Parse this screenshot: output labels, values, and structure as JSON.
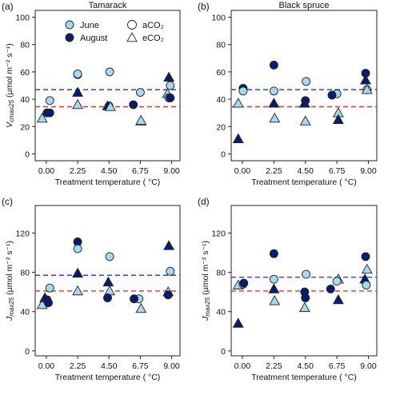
{
  "colors": {
    "june": "#a8d8ec",
    "august": "#0a1c6e",
    "outline": "#222222",
    "ambient_line": "#3b3bd6",
    "elevated_line": "#e0312b"
  },
  "legend": {
    "june": "June",
    "august": "August",
    "aco2": "aCO₂",
    "eco2": "eCO₂"
  },
  "chart_data": [
    {
      "type": "scatter",
      "panel": "(a)",
      "title": "Tamarack",
      "ylabel_main": "V",
      "ylabel_sub": "cmax25",
      "ylabel_units": " (µmol m⁻² s⁻¹)",
      "xlabel": "Treatment temperature ( °C)",
      "xlim": [
        -0.8,
        9.6
      ],
      "ylim": [
        -5,
        105
      ],
      "xticks": [
        "0.00",
        "2.25",
        "4.50",
        "6.75",
        "9.00"
      ],
      "yticks": [
        0,
        20,
        40,
        60,
        80,
        100
      ],
      "legend_position": "top-left",
      "hlines": {
        "aCO2": 47,
        "eCO2": 34.5
      },
      "points": [
        {
          "month": "June",
          "co2": "aCO2",
          "x": 0.25,
          "y": 39
        },
        {
          "month": "June",
          "co2": "eCO2",
          "x": -0.3,
          "y": 26
        },
        {
          "month": "August",
          "co2": "aCO2",
          "x": 0.05,
          "y": 30
        },
        {
          "month": "August",
          "co2": "aCO2",
          "x": 0.25,
          "y": 30
        },
        {
          "month": "June",
          "co2": "aCO2",
          "x": 2.25,
          "y": 58
        },
        {
          "month": "June",
          "co2": "aCO2",
          "x": 2.25,
          "y": 58.5
        },
        {
          "month": "August",
          "co2": "eCO2",
          "x": 2.25,
          "y": 45
        },
        {
          "month": "June",
          "co2": "eCO2",
          "x": 2.25,
          "y": 36
        },
        {
          "month": "June",
          "co2": "aCO2",
          "x": 4.55,
          "y": 60
        },
        {
          "month": "August",
          "co2": "aCO2",
          "x": 4.5,
          "y": 35
        },
        {
          "month": "August",
          "co2": "eCO2",
          "x": 4.4,
          "y": 35
        },
        {
          "month": "June",
          "co2": "eCO2",
          "x": 4.6,
          "y": 34.5
        },
        {
          "month": "June",
          "co2": "aCO2",
          "x": 6.75,
          "y": 45
        },
        {
          "month": "August",
          "co2": "aCO2",
          "x": 6.25,
          "y": 36
        },
        {
          "month": "June",
          "co2": "eCO2",
          "x": 6.8,
          "y": 24
        },
        {
          "month": "June",
          "co2": "eCO2",
          "x": 6.8,
          "y": 24.5
        },
        {
          "month": "August",
          "co2": "eCO2",
          "x": 8.8,
          "y": 56
        },
        {
          "month": "June",
          "co2": "aCO2",
          "x": 8.9,
          "y": 50
        },
        {
          "month": "June",
          "co2": "eCO2",
          "x": 8.7,
          "y": 44
        },
        {
          "month": "June",
          "co2": "aCO2",
          "x": 8.8,
          "y": 41
        },
        {
          "month": "August",
          "co2": "aCO2",
          "x": 8.9,
          "y": 41
        }
      ]
    },
    {
      "type": "scatter",
      "panel": "(b)",
      "title": "Black spruce",
      "ylabel_main": "",
      "ylabel_sub": "",
      "ylabel_units": "",
      "xlabel": "Treatment temperature ( °C)",
      "xlim": [
        -0.8,
        9.6
      ],
      "ylim": [
        -5,
        105
      ],
      "xticks": [
        "0.00",
        "2.25",
        "4.50",
        "6.75",
        "9.00"
      ],
      "yticks": [
        0,
        20,
        40,
        60,
        80,
        100
      ],
      "hlines": {
        "aCO2": 47,
        "eCO2": 34.5
      },
      "points": [
        {
          "month": "June",
          "co2": "eCO2",
          "x": -0.3,
          "y": 37
        },
        {
          "month": "August",
          "co2": "aCO2",
          "x": 0.05,
          "y": 48
        },
        {
          "month": "June",
          "co2": "aCO2",
          "x": 0.05,
          "y": 46
        },
        {
          "month": "August",
          "co2": "eCO2",
          "x": -0.3,
          "y": 11
        },
        {
          "month": "August",
          "co2": "aCO2",
          "x": 2.25,
          "y": 65
        },
        {
          "month": "June",
          "co2": "aCO2",
          "x": 2.25,
          "y": 46
        },
        {
          "month": "August",
          "co2": "eCO2",
          "x": 2.25,
          "y": 37
        },
        {
          "month": "June",
          "co2": "eCO2",
          "x": 2.3,
          "y": 26
        },
        {
          "month": "June",
          "co2": "aCO2",
          "x": 4.55,
          "y": 53
        },
        {
          "month": "August",
          "co2": "aCO2",
          "x": 4.5,
          "y": 39
        },
        {
          "month": "August",
          "co2": "eCO2",
          "x": 4.45,
          "y": 37
        },
        {
          "month": "June",
          "co2": "eCO2",
          "x": 4.5,
          "y": 24
        },
        {
          "month": "June",
          "co2": "aCO2",
          "x": 6.75,
          "y": 44
        },
        {
          "month": "August",
          "co2": "aCO2",
          "x": 6.4,
          "y": 43
        },
        {
          "month": "June",
          "co2": "eCO2",
          "x": 6.85,
          "y": 30
        },
        {
          "month": "August",
          "co2": "eCO2",
          "x": 6.85,
          "y": 25
        },
        {
          "month": "August",
          "co2": "aCO2",
          "x": 8.8,
          "y": 59
        },
        {
          "month": "August",
          "co2": "eCO2",
          "x": 8.8,
          "y": 54
        },
        {
          "month": "June",
          "co2": "aCO2",
          "x": 8.9,
          "y": 47
        },
        {
          "month": "June",
          "co2": "eCO2",
          "x": 8.9,
          "y": 47
        }
      ]
    },
    {
      "type": "scatter",
      "panel": "(c)",
      "title": "",
      "ylabel_main": "J",
      "ylabel_sub": "max25",
      "ylabel_units": " (µmol m⁻² s⁻¹)",
      "xlabel": "Treatment temperature ( °C)",
      "xlim": [
        -0.8,
        9.6
      ],
      "ylim": [
        -5,
        148
      ],
      "xticks": [
        "0.00",
        "2.25",
        "4.50",
        "6.75",
        "9.00"
      ],
      "yticks": [
        0,
        40,
        80,
        120
      ],
      "hlines": {
        "aCO2": 77,
        "eCO2": 61
      },
      "points": [
        {
          "month": "June",
          "co2": "aCO2",
          "x": 0.25,
          "y": 64
        },
        {
          "month": "June",
          "co2": "eCO2",
          "x": -0.3,
          "y": 47
        },
        {
          "month": "August",
          "co2": "eCO2",
          "x": -0.1,
          "y": 54
        },
        {
          "month": "August",
          "co2": "aCO2",
          "x": 0.05,
          "y": 52
        },
        {
          "month": "August",
          "co2": "aCO2",
          "x": 0.15,
          "y": 49
        },
        {
          "month": "August",
          "co2": "aCO2",
          "x": 2.25,
          "y": 111
        },
        {
          "month": "June",
          "co2": "aCO2",
          "x": 2.25,
          "y": 104
        },
        {
          "month": "August",
          "co2": "eCO2",
          "x": 2.25,
          "y": 79
        },
        {
          "month": "June",
          "co2": "eCO2",
          "x": 2.25,
          "y": 61
        },
        {
          "month": "June",
          "co2": "aCO2",
          "x": 4.55,
          "y": 96
        },
        {
          "month": "August",
          "co2": "eCO2",
          "x": 4.45,
          "y": 70
        },
        {
          "month": "June",
          "co2": "eCO2",
          "x": 4.55,
          "y": 61
        },
        {
          "month": "August",
          "co2": "aCO2",
          "x": 4.4,
          "y": 54
        },
        {
          "month": "June",
          "co2": "aCO2",
          "x": 6.65,
          "y": 53
        },
        {
          "month": "August",
          "co2": "aCO2",
          "x": 6.3,
          "y": 53
        },
        {
          "month": "June",
          "co2": "eCO2",
          "x": 6.8,
          "y": 43
        },
        {
          "month": "August",
          "co2": "eCO2",
          "x": 8.8,
          "y": 107
        },
        {
          "month": "June",
          "co2": "aCO2",
          "x": 8.9,
          "y": 81
        },
        {
          "month": "June",
          "co2": "eCO2",
          "x": 8.75,
          "y": 60
        },
        {
          "month": "August",
          "co2": "aCO2",
          "x": 8.75,
          "y": 57
        }
      ]
    },
    {
      "type": "scatter",
      "panel": "(d)",
      "title": "",
      "ylabel_main": "J",
      "ylabel_sub": "max25",
      "ylabel_units": " (µmol m⁻² s⁻¹)",
      "xlabel": "Treatment temperature ( °C)",
      "xlim": [
        -0.8,
        9.6
      ],
      "ylim": [
        -5,
        148
      ],
      "xticks": [
        "0.00",
        "2.25",
        "4.50",
        "6.75",
        "9.00"
      ],
      "yticks": [
        0,
        40,
        80,
        120
      ],
      "hlines": {
        "aCO2": 75,
        "eCO2": 61
      },
      "points": [
        {
          "month": "June",
          "co2": "eCO2",
          "x": -0.3,
          "y": 67
        },
        {
          "month": "June",
          "co2": "aCO2",
          "x": 0.05,
          "y": 68
        },
        {
          "month": "August",
          "co2": "aCO2",
          "x": 0.1,
          "y": 69
        },
        {
          "month": "August",
          "co2": "eCO2",
          "x": -0.3,
          "y": 28
        },
        {
          "month": "August",
          "co2": "aCO2",
          "x": 2.25,
          "y": 99
        },
        {
          "month": "June",
          "co2": "aCO2",
          "x": 2.25,
          "y": 73
        },
        {
          "month": "August",
          "co2": "eCO2",
          "x": 2.25,
          "y": 63
        },
        {
          "month": "June",
          "co2": "eCO2",
          "x": 2.3,
          "y": 51
        },
        {
          "month": "June",
          "co2": "aCO2",
          "x": 4.55,
          "y": 78
        },
        {
          "month": "August",
          "co2": "aCO2",
          "x": 4.45,
          "y": 60
        },
        {
          "month": "August",
          "co2": "aCO2",
          "x": 4.5,
          "y": 54
        },
        {
          "month": "June",
          "co2": "eCO2",
          "x": 4.45,
          "y": 44
        },
        {
          "month": "June",
          "co2": "eCO2",
          "x": 6.85,
          "y": 73
        },
        {
          "month": "June",
          "co2": "aCO2",
          "x": 6.75,
          "y": 71
        },
        {
          "month": "August",
          "co2": "aCO2",
          "x": 6.3,
          "y": 63
        },
        {
          "month": "August",
          "co2": "eCO2",
          "x": 6.85,
          "y": 52
        },
        {
          "month": "August",
          "co2": "aCO2",
          "x": 8.8,
          "y": 96
        },
        {
          "month": "June",
          "co2": "eCO2",
          "x": 8.9,
          "y": 83
        },
        {
          "month": "August",
          "co2": "eCO2",
          "x": 8.75,
          "y": 73
        },
        {
          "month": "June",
          "co2": "aCO2",
          "x": 8.85,
          "y": 67
        }
      ]
    }
  ]
}
